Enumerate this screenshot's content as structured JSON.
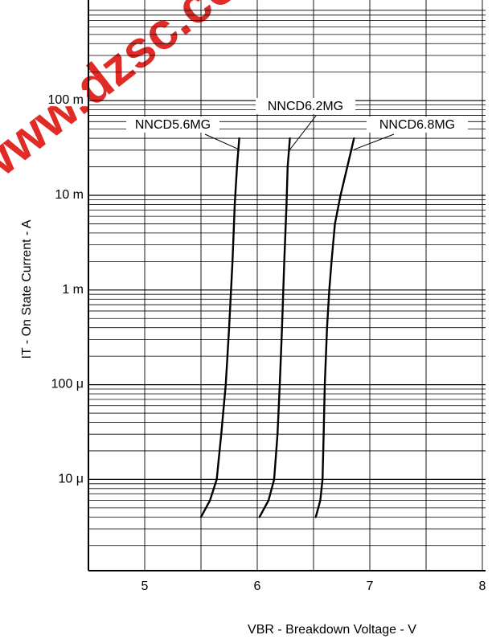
{
  "colors": {
    "line": "#000000",
    "grid": "#000000",
    "watermark": "#e0201c"
  },
  "watermark": {
    "text": "www.dzsc.com design"
  },
  "chart_data": {
    "type": "line",
    "title": "",
    "xlabel": "VBR - Breakdown Voltage - V",
    "ylabel": "IT - On State Current - A",
    "xlim": [
      4.5,
      8
    ],
    "ylim": [
      1e-06,
      1
    ],
    "yscale": "log",
    "grid": true,
    "x_ticks": [
      {
        "value": 5,
        "label": "5"
      },
      {
        "value": 6,
        "label": "6"
      },
      {
        "value": 7,
        "label": "7"
      },
      {
        "value": 8,
        "label": "8"
      }
    ],
    "y_ticks": [
      {
        "value": 0.1,
        "label": "100 m"
      },
      {
        "value": 0.01,
        "label": "10 m"
      },
      {
        "value": 0.001,
        "label": "1 m"
      },
      {
        "value": 0.0001,
        "label": "100 μ"
      },
      {
        "value": 1e-05,
        "label": "10 μ"
      }
    ],
    "series": [
      {
        "name": "NNCD5.6MG",
        "x": [
          5.5,
          5.58,
          5.64,
          5.68,
          5.72,
          5.75,
          5.78,
          5.8,
          5.82,
          5.84
        ],
        "y": [
          4e-06,
          6e-06,
          1e-05,
          3e-05,
          0.0001,
          0.0004,
          0.002,
          0.008,
          0.02,
          0.04
        ]
      },
      {
        "name": "NNCD6.2MG",
        "x": [
          6.02,
          6.1,
          6.15,
          6.18,
          6.2,
          6.22,
          6.24,
          6.26,
          6.27,
          6.29
        ],
        "y": [
          4e-06,
          6e-06,
          1e-05,
          3e-05,
          0.0001,
          0.0004,
          0.002,
          0.008,
          0.02,
          0.04
        ]
      },
      {
        "name": "NNCD6.8MG",
        "x": [
          6.52,
          6.56,
          6.58,
          6.59,
          6.6,
          6.62,
          6.64,
          6.66,
          6.69,
          6.74,
          6.8,
          6.86
        ],
        "y": [
          4e-06,
          6e-06,
          1e-05,
          3e-05,
          0.0001,
          0.0004,
          0.001,
          0.002,
          0.005,
          0.01,
          0.02,
          0.04
        ]
      }
    ]
  }
}
